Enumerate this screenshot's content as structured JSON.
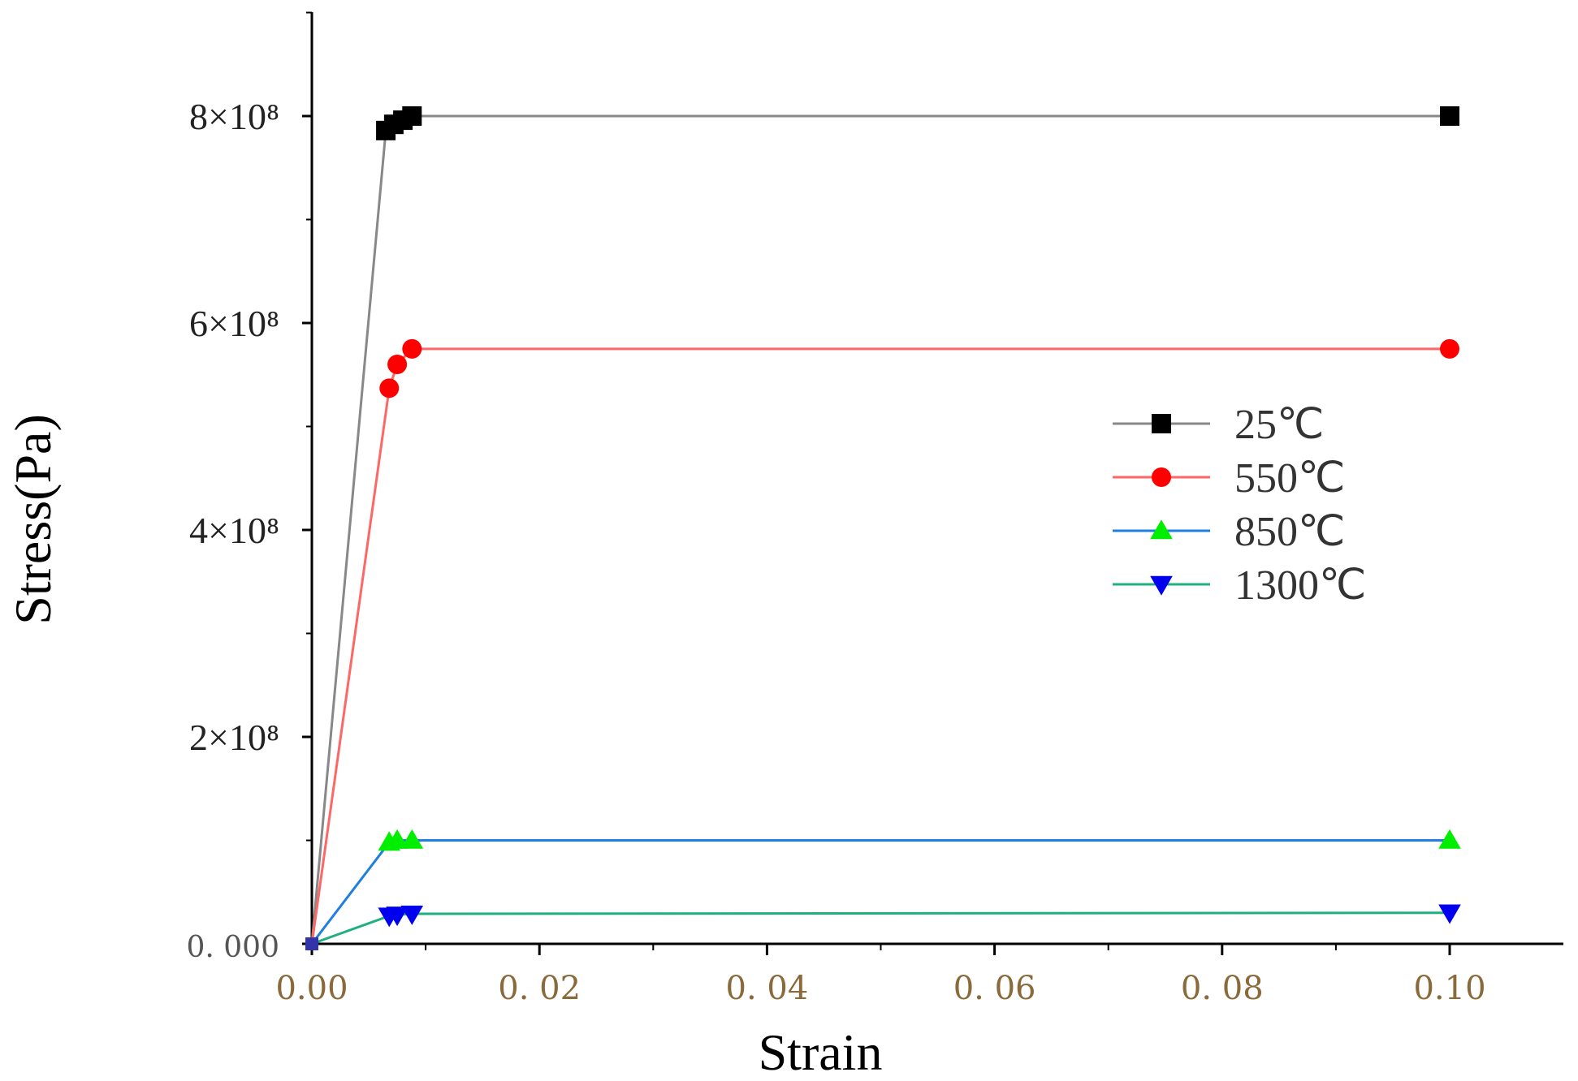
{
  "chart_data": {
    "type": "line",
    "xlabel": "Strain",
    "ylabel": "Stress(Pa)",
    "xlim": [
      0,
      0.11
    ],
    "ylim": [
      0,
      900000000
    ],
    "x_ticks": [
      0,
      0.02,
      0.04,
      0.06,
      0.08,
      0.1
    ],
    "x_tick_labels": [
      "0.00",
      "0. 02",
      "0. 04",
      "0. 06",
      "0. 08",
      "0.10"
    ],
    "y_ticks": [
      0,
      200000000,
      400000000,
      600000000,
      800000000
    ],
    "y_tick_labels": [
      "0. 000",
      "2×10⁸",
      "4×10⁸",
      "6×10⁸",
      "8×10⁸"
    ],
    "grid": false,
    "legend_position": "center-right",
    "series": [
      {
        "name": "25℃",
        "color": "#888888",
        "marker_color": "#000000",
        "marker": "square",
        "x": [
          0,
          0.0065,
          0.0072,
          0.008,
          0.0088,
          0.1
        ],
        "y": [
          0,
          786000000,
          792000000,
          796000000,
          800000000,
          800000000
        ]
      },
      {
        "name": "550℃",
        "color": "#ff6666",
        "marker_color": "#ff0000",
        "marker": "circle",
        "x": [
          0,
          0.0068,
          0.0075,
          0.0088,
          0.1
        ],
        "y": [
          0,
          537000000,
          560000000,
          575000000,
          575000000
        ]
      },
      {
        "name": "850℃",
        "color": "#1f7fe0",
        "marker_color": "#00ee00",
        "marker": "triangle-up",
        "x": [
          0,
          0.0068,
          0.0075,
          0.0088,
          0.1
        ],
        "y": [
          0,
          98000000,
          100000000,
          100000000,
          100000000
        ]
      },
      {
        "name": "1300℃",
        "color": "#20b080",
        "marker_color": "#0000ee",
        "marker": "triangle-down",
        "x": [
          0,
          0.0068,
          0.0075,
          0.0088,
          0.1
        ],
        "y": [
          0,
          27000000,
          28000000,
          29000000,
          30000000
        ]
      }
    ]
  }
}
